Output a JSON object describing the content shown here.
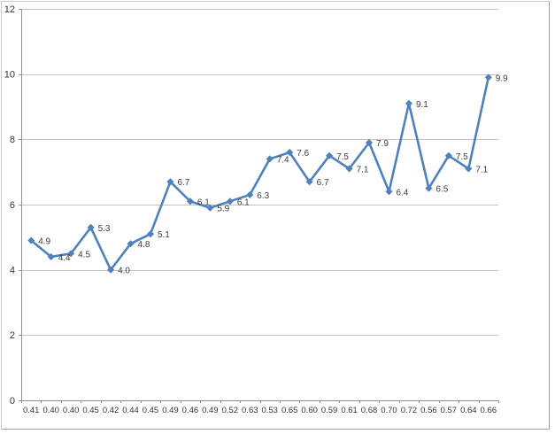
{
  "chart_data": {
    "type": "line",
    "title": "",
    "xlabel": "",
    "ylabel": "",
    "categories": [
      "0.41",
      "0.40",
      "0.40",
      "0.45",
      "0.42",
      "0.44",
      "0.45",
      "0.49",
      "0.46",
      "0.49",
      "0.52",
      "0.63",
      "0.53",
      "0.65",
      "0.60",
      "0.59",
      "0.61",
      "0.68",
      "0.70",
      "0.72",
      "0.56",
      "0.57",
      "0.64",
      "0.66"
    ],
    "values": [
      4.9,
      4.4,
      4.5,
      5.3,
      4.0,
      4.8,
      5.1,
      6.7,
      6.1,
      5.9,
      6.1,
      6.3,
      7.4,
      7.6,
      6.7,
      7.5,
      7.1,
      7.9,
      6.4,
      9.1,
      6.5,
      7.5,
      7.1,
      9.9
    ],
    "data_labels": [
      "4.9",
      "4.4",
      "4.5",
      "5.3",
      "4.0",
      "4.8",
      "5.1",
      "6.7",
      "6.1",
      "5.9",
      "6.1",
      "6.3",
      "7.4",
      "7.6",
      "6.7",
      "7.5",
      "7.1",
      "7.9",
      "6.4",
      "9.1",
      "6.5",
      "7.5",
      "7.1",
      "9.9"
    ],
    "y_ticks": [
      0,
      2,
      4,
      6,
      8,
      10,
      12
    ],
    "ylim": [
      0,
      12
    ],
    "grid": true,
    "legend": "none",
    "marker": "diamond",
    "colors": {
      "series": "#4F81BD",
      "gridline": "#c3c3c3",
      "axis": "#8f8f8f",
      "tick_label": "#333333",
      "data_label": "#3d3d3d",
      "background": "#ffffff",
      "frame_border": "#b5b5b5"
    }
  }
}
